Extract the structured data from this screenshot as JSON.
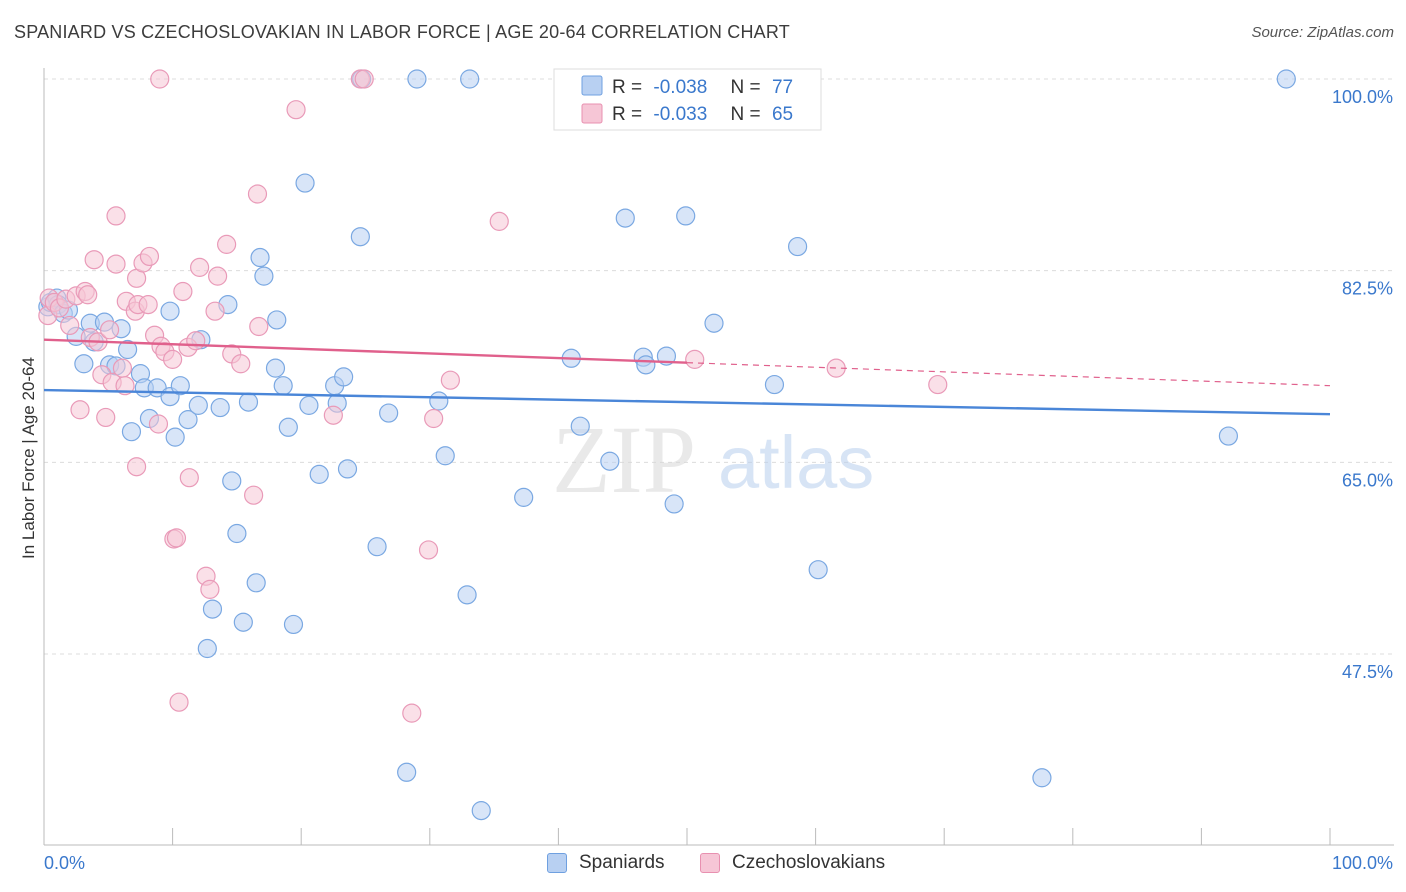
{
  "header": {
    "title": "SPANIARD VS CZECHOSLOVAKIAN IN LABOR FORCE | AGE 20-64 CORRELATION CHART",
    "source": "Source: ZipAtlas.com"
  },
  "watermark": {
    "zip": "ZIP",
    "atlas": "atlas"
  },
  "legend_stats": {
    "r_label": "R =",
    "n_label": "N =",
    "rows": [
      {
        "series": "Spaniards",
        "r": "-0.038",
        "n": "77",
        "color": "#6fa0e0",
        "fill": "#b8d0f2"
      },
      {
        "series": "Czechoslovakians",
        "r": "-0.033",
        "n": "65",
        "color": "#e890b0",
        "fill": "#f6c6d6"
      }
    ]
  },
  "bottom_legend": {
    "items": [
      {
        "label": "Spaniards",
        "color": "#6fa0e0",
        "fill": "#b8d0f2"
      },
      {
        "label": "Czechoslovakians",
        "color": "#e890b0",
        "fill": "#f6c6d6"
      }
    ]
  },
  "chart_data": {
    "type": "scatter",
    "title": "SPANIARD VS CZECHOSLOVAKIAN IN LABOR FORCE | AGE 20-64 CORRELATION CHART",
    "xlabel": "",
    "ylabel": "In Labor Force | Age 20-64",
    "xlim": [
      0,
      100
    ],
    "ylim": [
      32.5,
      101.5
    ],
    "x_tick_labels": [
      {
        "value": 0,
        "label": "0.0%"
      },
      {
        "value": 100,
        "label": "100.0%"
      }
    ],
    "y_ticks": [
      {
        "value": 100,
        "label": "100.0%"
      },
      {
        "value": 82.5,
        "label": "82.5%"
      },
      {
        "value": 65,
        "label": "65.0%"
      },
      {
        "value": 47.5,
        "label": "47.5%"
      }
    ],
    "x_minor_ticks": [
      0,
      10,
      20,
      30,
      40,
      50,
      60,
      70,
      80,
      90,
      100
    ],
    "grid": true,
    "series": [
      {
        "name": "Spaniards",
        "color": "#4a86d8",
        "fill": "#b8d0f2",
        "trend": {
          "x0": 0,
          "y0": 71.6,
          "x1": 100,
          "y1": 69.4,
          "solid_to": 100
        },
        "points": [
          [
            0.3,
            79.2
          ],
          [
            0.5,
            79.6
          ],
          [
            1.0,
            80.0
          ],
          [
            1.1,
            79.4
          ],
          [
            1.5,
            78.6
          ],
          [
            1.9,
            78.9
          ],
          [
            2.5,
            76.5
          ],
          [
            3.1,
            74.0
          ],
          [
            3.6,
            77.7
          ],
          [
            3.9,
            76.0
          ],
          [
            4.7,
            77.8
          ],
          [
            5.1,
            73.9
          ],
          [
            5.6,
            73.8
          ],
          [
            6.0,
            77.2
          ],
          [
            6.5,
            75.3
          ],
          [
            6.8,
            67.8
          ],
          [
            7.5,
            73.1
          ],
          [
            7.8,
            71.8
          ],
          [
            8.2,
            69.0
          ],
          [
            8.8,
            71.8
          ],
          [
            9.8,
            78.8
          ],
          [
            9.8,
            71.0
          ],
          [
            10.2,
            67.3
          ],
          [
            10.6,
            72.0
          ],
          [
            11.2,
            68.9
          ],
          [
            12.0,
            70.2
          ],
          [
            12.2,
            76.2
          ],
          [
            12.7,
            48.0
          ],
          [
            13.1,
            51.6
          ],
          [
            13.7,
            70.0
          ],
          [
            14.3,
            79.4
          ],
          [
            14.6,
            63.3
          ],
          [
            15.0,
            58.5
          ],
          [
            15.5,
            50.4
          ],
          [
            15.9,
            70.5
          ],
          [
            16.5,
            54.0
          ],
          [
            16.8,
            83.7
          ],
          [
            17.1,
            82.0
          ],
          [
            18.0,
            73.6
          ],
          [
            18.1,
            78.0
          ],
          [
            18.6,
            72.0
          ],
          [
            19.0,
            68.2
          ],
          [
            19.4,
            50.2
          ],
          [
            20.3,
            90.5
          ],
          [
            20.6,
            70.2
          ],
          [
            21.4,
            63.9
          ],
          [
            22.6,
            72.0
          ],
          [
            22.8,
            70.4
          ],
          [
            23.3,
            72.8
          ],
          [
            23.6,
            64.4
          ],
          [
            24.6,
            85.6
          ],
          [
            24.7,
            100
          ],
          [
            25.9,
            57.3
          ],
          [
            26.8,
            69.5
          ],
          [
            28.2,
            36.7
          ],
          [
            29.0,
            100
          ],
          [
            30.7,
            70.6
          ],
          [
            31.2,
            65.6
          ],
          [
            32.9,
            52.9
          ],
          [
            33.1,
            100
          ],
          [
            34.0,
            33.2
          ],
          [
            37.3,
            61.8
          ],
          [
            41.0,
            74.5
          ],
          [
            41.7,
            68.3
          ],
          [
            44.0,
            65.1
          ],
          [
            45.2,
            87.3
          ],
          [
            46.6,
            74.6
          ],
          [
            46.8,
            73.9
          ],
          [
            48.4,
            74.7
          ],
          [
            49.0,
            61.2
          ],
          [
            49.9,
            87.5
          ],
          [
            52.1,
            77.7
          ],
          [
            56.8,
            72.1
          ],
          [
            58.6,
            84.7
          ],
          [
            60.2,
            55.2
          ],
          [
            77.6,
            36.2
          ],
          [
            92.1,
            67.4
          ],
          [
            96.6,
            100
          ]
        ]
      },
      {
        "name": "Czechoslovakians",
        "color": "#e0608c",
        "fill": "#f6c6d6",
        "trend": {
          "x0": 0,
          "y0": 76.2,
          "x1": 100,
          "y1": 72.0,
          "solid_to": 50
        },
        "points": [
          [
            0.3,
            78.4
          ],
          [
            0.4,
            80.0
          ],
          [
            0.8,
            79.6
          ],
          [
            1.2,
            79.1
          ],
          [
            1.7,
            79.9
          ],
          [
            2.0,
            77.5
          ],
          [
            2.5,
            80.2
          ],
          [
            2.8,
            69.8
          ],
          [
            3.2,
            80.6
          ],
          [
            3.4,
            80.3
          ],
          [
            3.6,
            76.4
          ],
          [
            3.9,
            83.5
          ],
          [
            4.2,
            76.0
          ],
          [
            4.5,
            73.0
          ],
          [
            4.8,
            69.1
          ],
          [
            5.3,
            72.3
          ],
          [
            5.6,
            83.1
          ],
          [
            5.6,
            87.5
          ],
          [
            6.1,
            73.6
          ],
          [
            6.3,
            72.0
          ],
          [
            6.4,
            79.7
          ],
          [
            7.1,
            78.8
          ],
          [
            7.2,
            81.8
          ],
          [
            7.2,
            64.6
          ],
          [
            7.3,
            79.4
          ],
          [
            7.7,
            83.2
          ],
          [
            8.1,
            79.4
          ],
          [
            8.2,
            83.8
          ],
          [
            8.6,
            76.6
          ],
          [
            8.9,
            68.5
          ],
          [
            9.0,
            100
          ],
          [
            9.1,
            75.6
          ],
          [
            9.4,
            75.1
          ],
          [
            10.0,
            74.4
          ],
          [
            10.1,
            58.0
          ],
          [
            10.3,
            58.1
          ],
          [
            10.5,
            43.1
          ],
          [
            10.8,
            80.6
          ],
          [
            11.2,
            75.5
          ],
          [
            11.3,
            63.6
          ],
          [
            11.8,
            76.1
          ],
          [
            12.1,
            82.8
          ],
          [
            12.6,
            54.6
          ],
          [
            12.9,
            53.4
          ],
          [
            13.3,
            78.8
          ],
          [
            13.5,
            82.0
          ],
          [
            14.2,
            84.9
          ],
          [
            14.6,
            74.9
          ],
          [
            15.3,
            74.0
          ],
          [
            16.3,
            62.0
          ],
          [
            16.6,
            89.5
          ],
          [
            16.7,
            77.4
          ],
          [
            19.6,
            97.2
          ],
          [
            22.5,
            69.3
          ],
          [
            24.6,
            100
          ],
          [
            24.9,
            100
          ],
          [
            28.6,
            42.1
          ],
          [
            29.9,
            57.0
          ],
          [
            30.3,
            69.0
          ],
          [
            31.6,
            72.5
          ],
          [
            35.4,
            87.0
          ],
          [
            50.6,
            74.4
          ],
          [
            61.6,
            73.6
          ],
          [
            69.5,
            72.1
          ],
          [
            5.1,
            77.1
          ]
        ]
      }
    ]
  }
}
